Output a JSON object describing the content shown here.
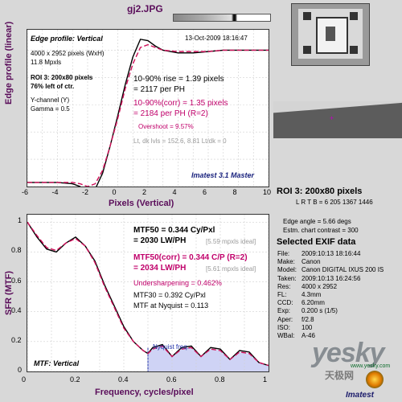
{
  "filename": "gj2.JPG",
  "top_chart": {
    "title": "Edge profile: Vertical",
    "timestamp": "13-Oct-2009 18:16:47",
    "image_size": "4000 x 2952 pixels (WxH)",
    "mpxls": "11.8 Mpxls",
    "roi": "ROI 3:  200x80 pixels",
    "roi_pos": "76% left of ctr.",
    "channel": "Y-channel  (Y)",
    "gamma": "Gamma = 0.5",
    "rise_line1": "10-90% rise = 1.39 pixels",
    "rise_line2": "= 2117 per PH",
    "corr_line1": "10-90%(corr) = 1.35 pixels",
    "corr_line2": "= 2184 per PH   (R=2)",
    "overshoot": "Overshoot = 9.57%",
    "levels": "Lt, dk lvls = 152.6, 8.81   Lt/dk = 0",
    "brand": "Imatest 3.1 Master",
    "ylabel": "Edge profile (linear)",
    "xlabel": "Pixels (Vertical)",
    "xticks": [
      "-6",
      "-4",
      "-2",
      "0",
      "2",
      "4",
      "6",
      "8",
      "10"
    ]
  },
  "bottom_chart": {
    "mtf50": "MTF50 = 0.344 Cy/Pxl",
    "mtf50_lw": "= 2030 LW/PH",
    "mtf50_ideal": "[5.59 mpxls ideal]",
    "mtf50c": "MTF50(corr) = 0.344 C/P   (R=2)",
    "mtf50c_lw": "= 2034 LW/PH",
    "mtf50c_ideal": "[5.61 mpxls ideal]",
    "undersharp": "Undersharpening = 0.462%",
    "mtf30": "MTF30 = 0.392 Cy/Pxl",
    "mtf_nyq": "MTF at Nyquist = 0.113",
    "nyquist": "Nyquist freq.",
    "title": "MTF: Vertical",
    "ylabel": "SFR (MTF)",
    "xlabel": "Frequency, cycles/pixel",
    "xticks": [
      "0",
      "0.2",
      "0.4",
      "0.6",
      "0.8",
      "1"
    ],
    "yticks": [
      "1",
      "0.8",
      "0.6",
      "0.4",
      "0.2",
      "0"
    ]
  },
  "right_panel": {
    "roi": "ROI 3:  200x80 pixels",
    "lrtb": "L R T B = 6 205  1367 1446",
    "edge_angle": "Edge angle = 5.66 degs",
    "contrast": "Estm. chart contrast = 300",
    "exif_title": "Selected EXIF data",
    "exif": [
      {
        "k": "File:",
        "v": "2009:10:13 18:16:44"
      },
      {
        "k": "Make:",
        "v": "Canon"
      },
      {
        "k": "Model:",
        "v": "Canon DIGITAL IXUS 200 IS"
      },
      {
        "k": "Taken:",
        "v": "2009:10:13 16:24:56"
      },
      {
        "k": "Res:",
        "v": "4000 x 2952"
      },
      {
        "k": "FL:",
        "v": "4.3mm"
      },
      {
        "k": "CCD:",
        "v": "6.20mm"
      },
      {
        "k": "Exp:",
        "v": "0.200 s  (1/5)"
      },
      {
        "k": "Aper:",
        "v": "f/2.8"
      },
      {
        "k": "ISO:",
        "v": "100"
      },
      {
        "k": "WBal:",
        "v": "A-46"
      }
    ],
    "watermark_main": "yesky",
    "watermark_sub": "天极网",
    "watermark_url": "www.yesky.com",
    "logo": "Imatest"
  },
  "chart_data": [
    {
      "type": "line",
      "title": "Edge profile: Vertical",
      "xlabel": "Pixels (Vertical)",
      "ylabel": "Edge profile (linear)",
      "xlim": [
        -6,
        10
      ],
      "ylim": [
        0,
        1.15
      ],
      "grid": true,
      "series": [
        {
          "values_x": [
            -6,
            -5,
            -4,
            -3,
            -2.5,
            -2,
            -1.5,
            -1,
            -0.5,
            0,
            0.5,
            1,
            1.5,
            2,
            2.5,
            3,
            4,
            5,
            6,
            7,
            8,
            9,
            10
          ],
          "values_y": [
            0.03,
            0.03,
            0.03,
            0.02,
            0.0,
            -0.04,
            -0.02,
            0.1,
            0.3,
            0.52,
            0.75,
            0.95,
            1.08,
            1.07,
            1.03,
            1.0,
            0.98,
            0.98,
            0.99,
            1.0,
            1.0,
            1.0,
            1.0
          ]
        },
        {
          "values_x": [
            -6,
            -5,
            -4,
            -3,
            -2.5,
            -2,
            -1.5,
            -1,
            -0.5,
            0,
            0.5,
            1,
            1.5,
            2,
            2.5,
            3,
            4,
            5,
            6,
            7,
            8,
            9,
            10
          ],
          "values_y": [
            0.03,
            0.03,
            0.03,
            0.03,
            0.02,
            0.0,
            0.02,
            0.12,
            0.3,
            0.5,
            0.72,
            0.9,
            1.02,
            1.04,
            1.02,
            1.0,
            0.99,
            0.99,
            0.99,
            1.0,
            1.0,
            1.0,
            1.0
          ]
        }
      ]
    },
    {
      "type": "line",
      "title": "MTF: Vertical",
      "xlabel": "Frequency, cycles/pixel",
      "ylabel": "SFR (MTF)",
      "xlim": [
        0,
        1
      ],
      "ylim": [
        0,
        1.05
      ],
      "grid": true,
      "series": [
        {
          "values_x": [
            0,
            0.04,
            0.08,
            0.12,
            0.16,
            0.2,
            0.24,
            0.28,
            0.32,
            0.36,
            0.4,
            0.44,
            0.48,
            0.5,
            0.52,
            0.56,
            0.6,
            0.64,
            0.68,
            0.72,
            0.76,
            0.8,
            0.84,
            0.88,
            0.92,
            0.96,
            1.0
          ],
          "values_y": [
            1.0,
            0.9,
            0.82,
            0.8,
            0.86,
            0.9,
            0.84,
            0.74,
            0.58,
            0.44,
            0.3,
            0.2,
            0.14,
            0.12,
            0.16,
            0.18,
            0.1,
            0.16,
            0.17,
            0.1,
            0.16,
            0.15,
            0.08,
            0.14,
            0.13,
            0.06,
            0.04
          ]
        },
        {
          "values_x": [
            0,
            0.04,
            0.08,
            0.12,
            0.16,
            0.2,
            0.24,
            0.28,
            0.32,
            0.36,
            0.4,
            0.44,
            0.48,
            0.5,
            0.52,
            0.56,
            0.6,
            0.64,
            0.68,
            0.72,
            0.76,
            0.8,
            0.84,
            0.88,
            0.92,
            0.96,
            1.0
          ],
          "values_y": [
            1.0,
            0.91,
            0.83,
            0.81,
            0.86,
            0.89,
            0.84,
            0.73,
            0.57,
            0.43,
            0.29,
            0.2,
            0.14,
            0.12,
            0.15,
            0.17,
            0.1,
            0.15,
            0.16,
            0.1,
            0.15,
            0.14,
            0.08,
            0.13,
            0.12,
            0.06,
            0.04
          ]
        }
      ]
    }
  ]
}
